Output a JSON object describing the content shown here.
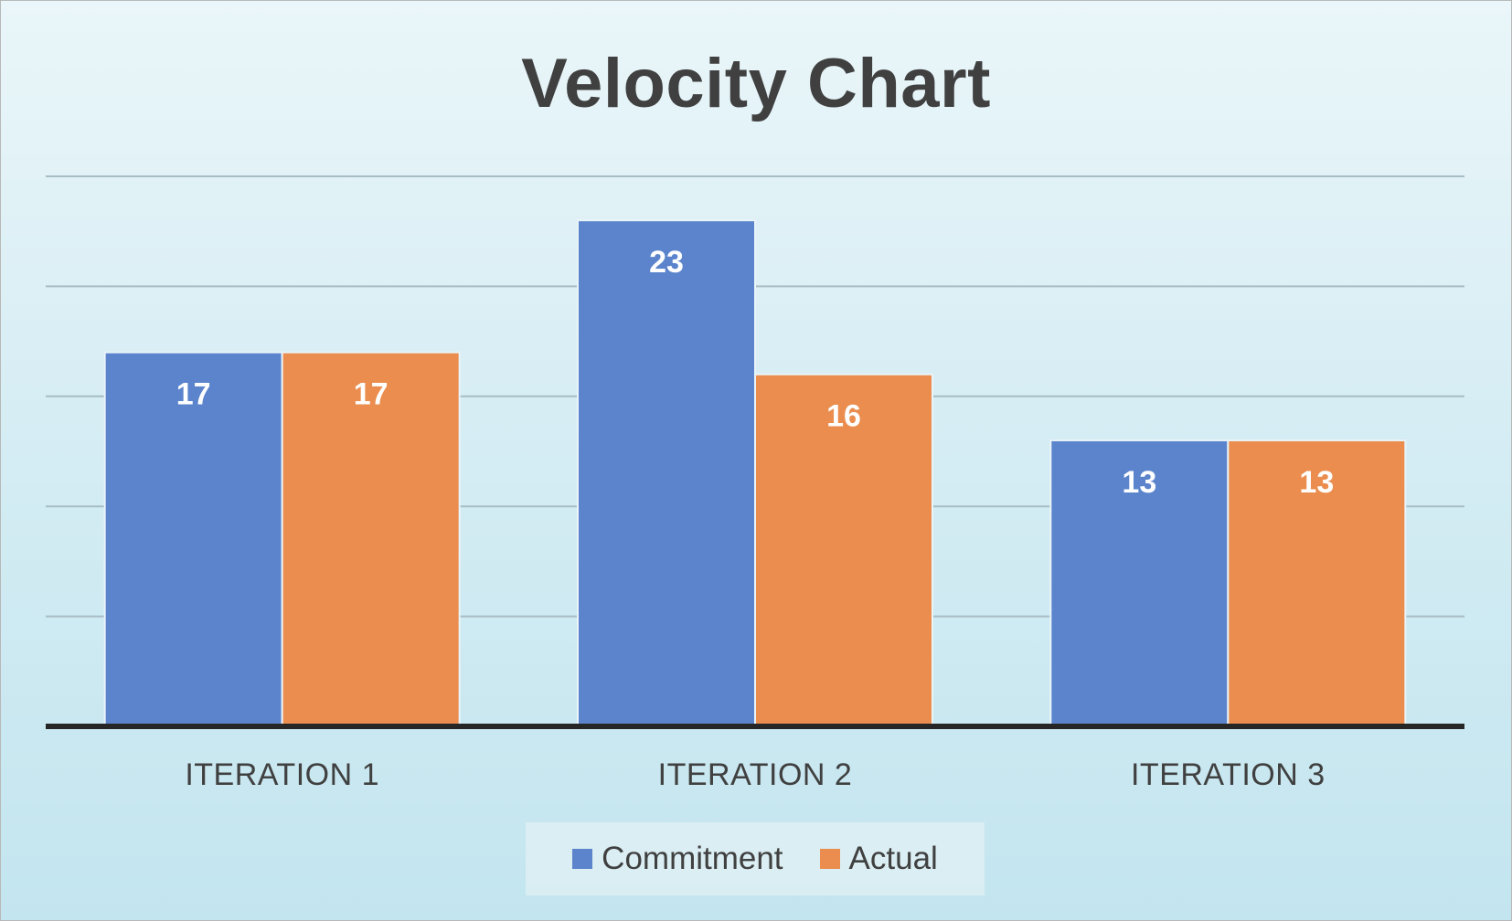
{
  "chart_data": {
    "type": "bar",
    "title": "Velocity Chart",
    "categories": [
      "ITERATION 1",
      "ITERATION 2",
      "ITERATION 3"
    ],
    "series": [
      {
        "name": "Commitment",
        "values": [
          17,
          23,
          13
        ],
        "color": "#5b84cc"
      },
      {
        "name": "Actual",
        "values": [
          17,
          16,
          13
        ],
        "color": "#ea8d4e"
      }
    ],
    "ylim": [
      0,
      25
    ],
    "grid": true,
    "data_labels": true,
    "legend_position": "bottom"
  }
}
